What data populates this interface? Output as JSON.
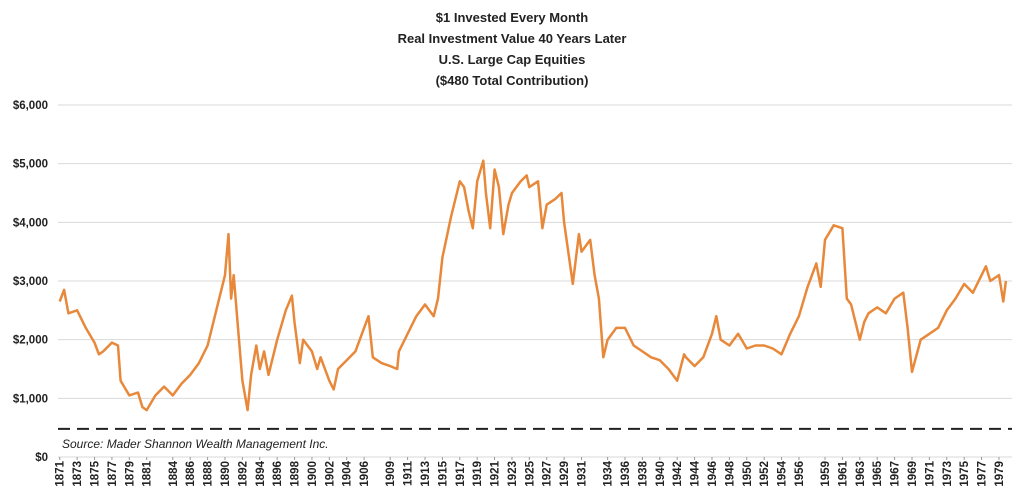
{
  "chart_data": {
    "type": "line",
    "title": [
      "$1 Invested Every Month",
      "Real Investment Value 40 Years Later",
      "U.S. Large Cap Equities",
      "($480 Total Contribution)"
    ],
    "annotation": "Source: Mader Shannon Wealth Management Inc.",
    "series": [
      {
        "name": "Real Investment Value",
        "color": "#e8883a",
        "x": [
          1871,
          1871.5,
          1872,
          1873,
          1874,
          1875,
          1875.5,
          1876,
          1877,
          1877.7,
          1878,
          1879,
          1880,
          1880.5,
          1881,
          1882,
          1883,
          1884,
          1885,
          1886,
          1887,
          1888,
          1889,
          1890,
          1890.4,
          1890.7,
          1891,
          1891.5,
          1892,
          1892.6,
          1893,
          1893.6,
          1894,
          1894.5,
          1895,
          1896,
          1897,
          1897.7,
          1898,
          1898.6,
          1899,
          1900,
          1900.6,
          1901,
          1902,
          1902.5,
          1903,
          1904,
          1905,
          1906,
          1906.5,
          1907,
          1908,
          1909,
          1909.8,
          1910,
          1911,
          1912,
          1913,
          1914,
          1914.5,
          1915,
          1916,
          1917,
          1917.5,
          1918,
          1918.5,
          1919,
          1919.7,
          1920,
          1920.5,
          1921,
          1921.5,
          1922,
          1922.6,
          1923,
          1924,
          1924.7,
          1925,
          1926,
          1926.5,
          1927,
          1928,
          1928.7,
          1929,
          1930,
          1930.7,
          1931,
          1932,
          1932.5,
          1933,
          1933.5,
          1934,
          1935,
          1936,
          1937,
          1938,
          1939,
          1940,
          1941,
          1942,
          1942.8,
          1943,
          1944,
          1945,
          1946,
          1946.5,
          1947,
          1948,
          1949,
          1950,
          1951,
          1952,
          1953,
          1954,
          1955,
          1956,
          1957,
          1958,
          1958.5,
          1959,
          1960,
          1961,
          1961.5,
          1962,
          1963,
          1963.5,
          1964,
          1965,
          1966,
          1967,
          1968,
          1968.5,
          1969,
          1970,
          1971,
          1972,
          1973,
          1974,
          1975,
          1976,
          1977,
          1977.5,
          1978,
          1979,
          1979.5,
          1979.8
        ],
        "values": [
          2650,
          2850,
          2450,
          2500,
          2200,
          1950,
          1750,
          1800,
          1950,
          1900,
          1300,
          1050,
          1100,
          850,
          800,
          1050,
          1200,
          1050,
          1250,
          1400,
          1600,
          1900,
          2500,
          3100,
          3800,
          2700,
          3100,
          2200,
          1300,
          800,
          1400,
          1900,
          1500,
          1800,
          1400,
          2000,
          2500,
          2750,
          2300,
          1600,
          2000,
          1800,
          1500,
          1700,
          1300,
          1150,
          1500,
          1650,
          1800,
          2200,
          2400,
          1700,
          1600,
          1550,
          1500,
          1800,
          2100,
          2400,
          2600,
          2400,
          2700,
          3400,
          4100,
          4700,
          4600,
          4200,
          3900,
          4700,
          5050,
          4500,
          3900,
          4900,
          4600,
          3800,
          4300,
          4500,
          4700,
          4800,
          4600,
          4700,
          3900,
          4300,
          4400,
          4500,
          4000,
          2950,
          3800,
          3500,
          3700,
          3100,
          2700,
          1700,
          2000,
          2200,
          2200,
          1900,
          1800,
          1700,
          1650,
          1500,
          1300,
          1750,
          1700,
          1550,
          1700,
          2100,
          2400,
          2000,
          1900,
          2100,
          1850,
          1900,
          1900,
          1850,
          1750,
          2100,
          2400,
          2900,
          3300,
          2900,
          3700,
          3950,
          3900,
          2700,
          2600,
          2000,
          2300,
          2450,
          2550,
          2450,
          2700,
          2800,
          2200,
          1450,
          2000,
          2100,
          2200,
          2500,
          2700,
          2950,
          2800,
          3100,
          3250,
          3000,
          3100,
          2650,
          3000
        ]
      }
    ],
    "reference_line": {
      "value": 480,
      "color": "#222222",
      "style": "dashed"
    },
    "xlim": [
      1870.8,
      1980.5
    ],
    "xticks": [
      1871,
      1873,
      1875,
      1877,
      1879,
      1881,
      1884,
      1886,
      1888,
      1890,
      1892,
      1894,
      1896,
      1898,
      1900,
      1902,
      1904,
      1906,
      1909,
      1911,
      1913,
      1915,
      1917,
      1919,
      1921,
      1923,
      1925,
      1927,
      1929,
      1931,
      1934,
      1936,
      1938,
      1940,
      1942,
      1944,
      1946,
      1948,
      1950,
      1952,
      1954,
      1956,
      1959,
      1961,
      1963,
      1965,
      1967,
      1969,
      1971,
      1973,
      1975,
      1977,
      1979
    ],
    "ylim": [
      0,
      6000
    ],
    "yticks": [
      {
        "value": 0,
        "label": "$0"
      },
      {
        "value": 1000,
        "label": "$1,000"
      },
      {
        "value": 2000,
        "label": "$2,000"
      },
      {
        "value": 3000,
        "label": "$3,000"
      },
      {
        "value": 4000,
        "label": "$4,000"
      },
      {
        "value": 5000,
        "label": "$5,000"
      },
      {
        "value": 6000,
        "label": "$6,000"
      }
    ],
    "grid": true
  }
}
